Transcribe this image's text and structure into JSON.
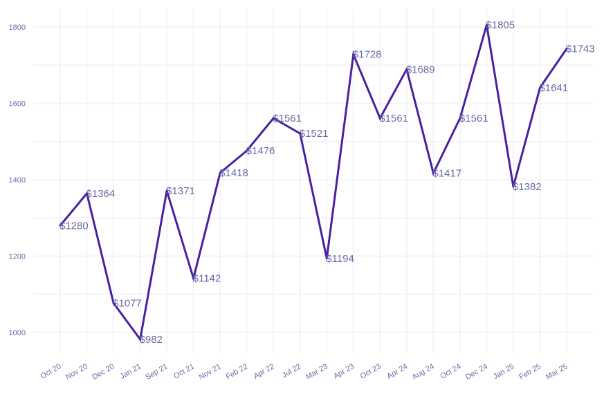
{
  "chart_data": {
    "type": "line",
    "title": "",
    "xlabel": "",
    "ylabel": "",
    "categories": [
      "Oct 20",
      "Nov 20",
      "Dec 20",
      "Jan 21",
      "Sep 21",
      "Oct 21",
      "Nov 21",
      "Feb 22",
      "Apr 22",
      "Jul 22",
      "Mar 23",
      "Apr 23",
      "Oct 23",
      "Apr 24",
      "Aug 24",
      "Oct 24",
      "Dec 24",
      "Jan 25",
      "Feb 25",
      "Mar 25"
    ],
    "series": [
      {
        "values": [
          1280,
          1364,
          1077,
          982,
          1371,
          1142,
          1418,
          1476,
          1561,
          1521,
          1194,
          1728,
          1561,
          1689,
          1417,
          1561,
          1805,
          1382,
          1641,
          1743
        ],
        "labels": [
          "$1280",
          "$1364",
          "$1077",
          "$982",
          "$1371",
          "$1142",
          "$1418",
          "$1476",
          "$1561",
          "$1521",
          "$1194",
          "$1728",
          "$1561",
          "$1689",
          "$1417",
          "$1561",
          "$1805",
          "$1382",
          "$1641",
          "$1743"
        ],
        "color": "#4a1fa0"
      }
    ],
    "yticks": [
      1000,
      1200,
      1400,
      1600,
      1800
    ],
    "ytick_labels": [
      "1000",
      "1200",
      "1400",
      "1600",
      "1800"
    ],
    "ylim": [
      982,
      1805
    ],
    "grid": true,
    "legend": "none"
  }
}
